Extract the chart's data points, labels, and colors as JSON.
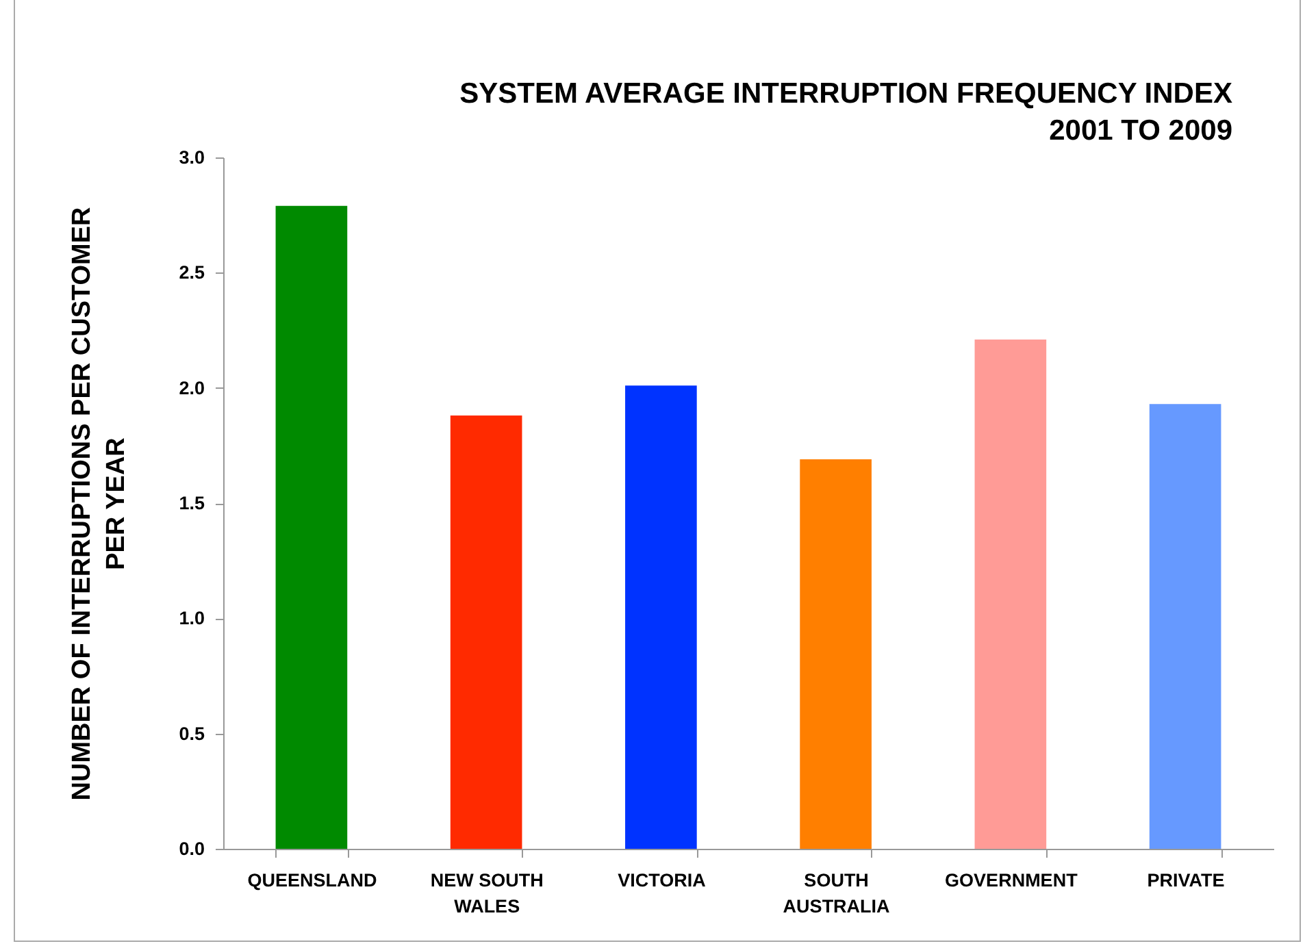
{
  "chart_data": {
    "type": "bar",
    "title": "SYSTEM AVERAGE INTERRUPTION FREQUENCY INDEX 2001 TO 2009",
    "ylabel": "NUMBER OF INTERRUPTIONS PER CUSTOMER PER YEAR",
    "categories": [
      "QUEENSLAND",
      "NEW SOUTH WALES",
      "VICTORIA",
      "SOUTH AUSTRALIA",
      "GOVERNMENT",
      "PRIVATE"
    ],
    "values": [
      2.79,
      1.88,
      2.01,
      1.69,
      2.21,
      1.93
    ],
    "colors": [
      "#008a00",
      "#ff2a00",
      "#0033ff",
      "#ff7f00",
      "#ff9b96",
      "#6699ff"
    ],
    "ylim": [
      0,
      3
    ],
    "yticks": [
      {
        "value": 0,
        "label": "0.0"
      },
      {
        "value": 0.5,
        "label": "0.5"
      },
      {
        "value": 1,
        "label": "1.0"
      },
      {
        "value": 1.5,
        "label": "1.5"
      },
      {
        "value": 2,
        "label": "2.0"
      },
      {
        "value": 2.5,
        "label": "2.5"
      },
      {
        "value": 3,
        "label": "3.0"
      }
    ],
    "grid": false,
    "legend": false
  }
}
